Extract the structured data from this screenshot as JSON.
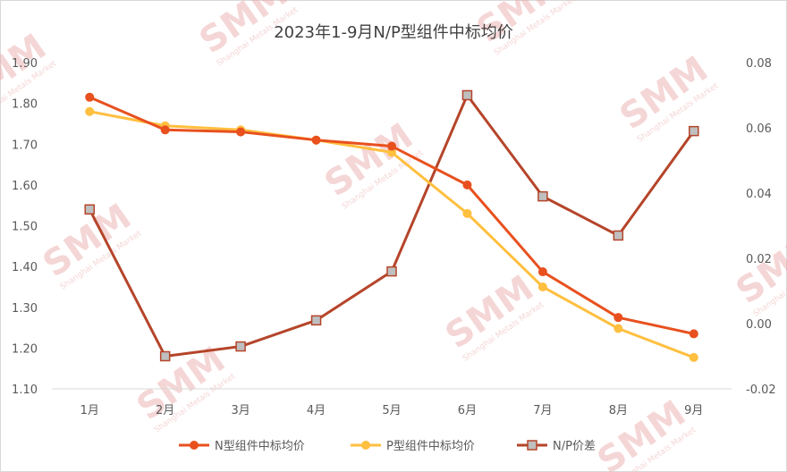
{
  "watermark": {
    "logo": "SMM",
    "tagline": "Shanghai Metals Market"
  },
  "chart_data": {
    "type": "line",
    "title": "2023年1-9月N/P型组件中标均价",
    "categories": [
      "1月",
      "2月",
      "3月",
      "4月",
      "5月",
      "6月",
      "7月",
      "8月",
      "9月"
    ],
    "y_left": {
      "min": 1.1,
      "max": 1.9,
      "step": 0.1,
      "decimals": 2
    },
    "y_right": {
      "min": -0.02,
      "max": 0.08,
      "step": 0.02,
      "decimals": 2
    },
    "grid": false,
    "legend_position": "bottom",
    "series": [
      {
        "name": "N型组件中标均价",
        "axis": "left",
        "color": "#e8501e",
        "marker": "circle",
        "values": [
          1.815,
          1.735,
          1.73,
          1.71,
          1.695,
          1.6,
          1.387,
          1.275,
          1.235
        ]
      },
      {
        "name": "P型组件中标均价",
        "axis": "left",
        "color": "#ffbf3f",
        "marker": "circle",
        "values": [
          1.78,
          1.745,
          1.735,
          1.71,
          1.68,
          1.53,
          1.35,
          1.248,
          1.177
        ]
      },
      {
        "name": "N/P价差",
        "axis": "right",
        "color": "#b5452a",
        "marker": "square",
        "values": [
          0.035,
          -0.01,
          -0.007,
          0.001,
          0.016,
          0.07,
          0.039,
          0.027,
          0.059
        ]
      }
    ]
  }
}
